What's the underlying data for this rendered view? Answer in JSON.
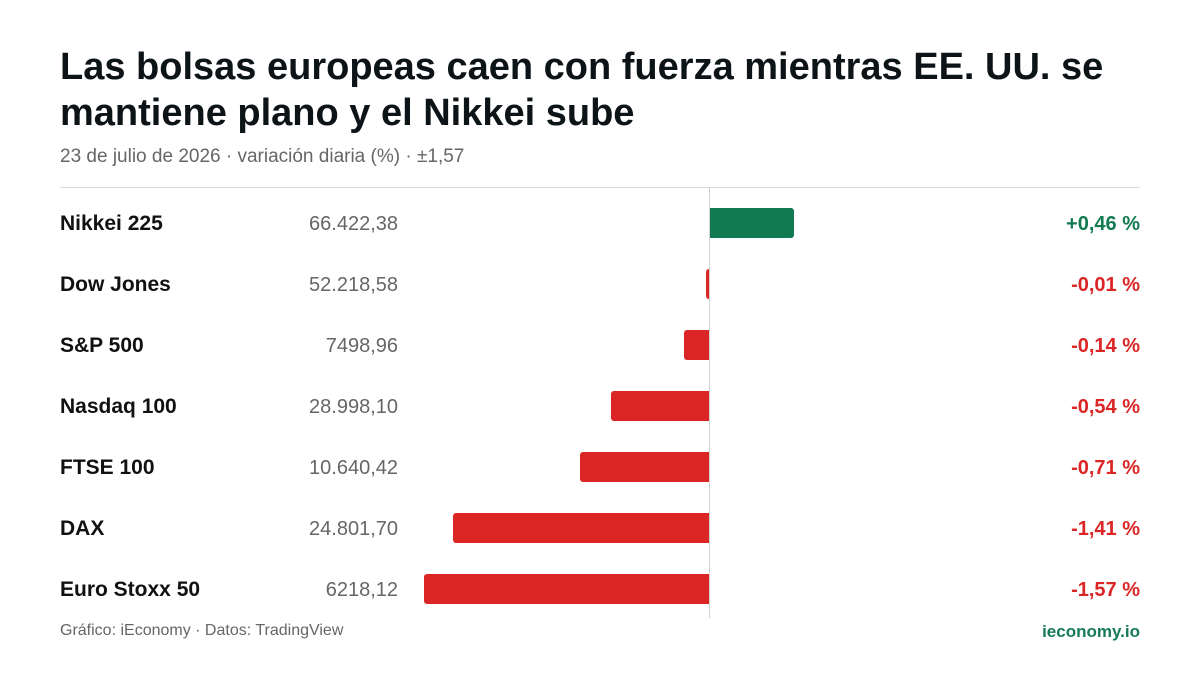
{
  "title": "Las bolsas europeas caen con fuerza mientras EE. UU. se mantiene plano y el Nikkei sube",
  "subtitle": "23 de julio de 2026 · variación diaria (%) · ±1,57",
  "footer": {
    "credit": "Gráfico: iEconomy · Datos: TradingView",
    "brand": "ieconomy.io"
  },
  "colors": {
    "positive": "#127a50",
    "negative": "#dc2626"
  },
  "chart_data": {
    "type": "bar",
    "orientation": "horizontal",
    "categories": [
      "Nikkei 225",
      "Dow Jones",
      "S&P 500",
      "Nasdaq 100",
      "FTSE 100",
      "DAX",
      "Euro Stoxx 50"
    ],
    "levels": [
      "66.422,38",
      "52.218,58",
      "7498,96",
      "28.998,10",
      "10.640,42",
      "24.801,70",
      "6218,12"
    ],
    "values": [
      0.46,
      -0.01,
      -0.14,
      -0.54,
      -0.71,
      -1.41,
      -1.57
    ],
    "labels": [
      "+0,46 %",
      "-0,01 %",
      "-0,14 %",
      "-0,54 %",
      "-0,71 %",
      "-1,41 %",
      "-1,57 %"
    ],
    "xlim": [
      -1.57,
      1.57
    ],
    "grid": false
  }
}
